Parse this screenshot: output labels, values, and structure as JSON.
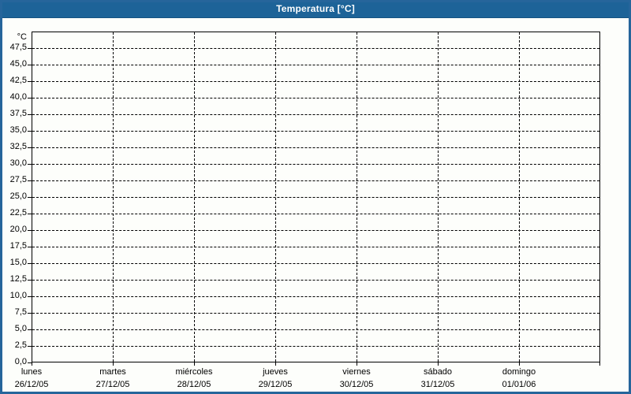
{
  "header": {
    "title": "Temperatura [°C]"
  },
  "colors": {
    "titlebar_bg": "#1d6398",
    "titlebar_text": "#ffffff",
    "outer_border": "#26659b",
    "page_bg": "#fdfefb",
    "grid_and_axis": "#000000",
    "label_text": "#000000"
  },
  "chart_data": {
    "type": "line",
    "title": "Temperatura [°C]",
    "subtitle": "",
    "grid": {
      "style": "dashed",
      "color": "#000000"
    },
    "legend": "none",
    "y_axis": {
      "unit_label": "°C",
      "min": 0,
      "max": 50,
      "tick_step": 2.5,
      "first_tick": 0,
      "last_tick": 47.5,
      "decimal_separator": ",",
      "tick_labels": [
        "0,0",
        "2,5",
        "5,0",
        "7,5",
        "10,0",
        "12,5",
        "15,0",
        "17,5",
        "20,0",
        "22,5",
        "25,0",
        "27,5",
        "30,0",
        "32,5",
        "35,0",
        "37,5",
        "40,0",
        "42,5",
        "45,0",
        "47,5"
      ]
    },
    "x_axis": {
      "categories": [
        {
          "day": "lunes",
          "date": "26/12/05"
        },
        {
          "day": "martes",
          "date": "27/12/05"
        },
        {
          "day": "miércoles",
          "date": "28/12/05"
        },
        {
          "day": "jueves",
          "date": "29/12/05"
        },
        {
          "day": "viernes",
          "date": "30/12/05"
        },
        {
          "day": "sábado",
          "date": "31/12/05"
        },
        {
          "day": "domingo",
          "date": "01/01/06"
        }
      ]
    },
    "series": [],
    "note_no_data_plotted": true
  }
}
